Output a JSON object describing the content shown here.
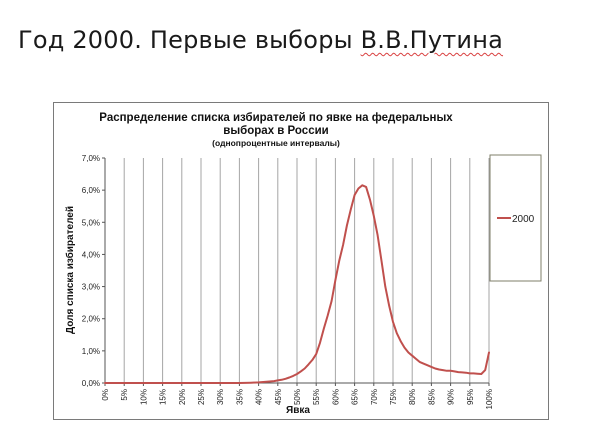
{
  "slide": {
    "title_prefix": "Год 2000. Первые выборы ",
    "title_name": "В.В.Путина"
  },
  "chart_data": {
    "type": "line",
    "title_line1": "Распределение списка избирателей по явке на федеральных",
    "title_line2": "выборах в России",
    "subtitle": "(однопроцентные интервалы)",
    "xlabel": "Явка",
    "ylabel": "Доля списка избирателей",
    "xlim": [
      0,
      100
    ],
    "ylim": [
      0,
      7
    ],
    "x_ticks": [
      "0%",
      "5%",
      "10%",
      "15%",
      "20%",
      "25%",
      "30%",
      "35%",
      "40%",
      "45%",
      "50%",
      "55%",
      "60%",
      "65%",
      "70%",
      "75%",
      "80%",
      "85%",
      "90%",
      "95%",
      "100%"
    ],
    "y_ticks": [
      "0,0%",
      "1,0%",
      "2,0%",
      "3,0%",
      "4,0%",
      "5,0%",
      "6,0%",
      "7,0%"
    ],
    "grid": "vertical",
    "legend_position": "right",
    "series": [
      {
        "name": "2000",
        "color": "#c0504d",
        "x": [
          0,
          5,
          10,
          15,
          20,
          25,
          30,
          35,
          38,
          40,
          42,
          44,
          45,
          46,
          47,
          48,
          49,
          50,
          51,
          52,
          53,
          54,
          55,
          56,
          57,
          58,
          59,
          60,
          61,
          62,
          63,
          64,
          65,
          66,
          67,
          68,
          69,
          70,
          71,
          72,
          73,
          74,
          75,
          76,
          77,
          78,
          79,
          80,
          81,
          82,
          83,
          84,
          85,
          86,
          87,
          88,
          89,
          90,
          91,
          92,
          93,
          94,
          95,
          96,
          97,
          98,
          99,
          100
        ],
        "y": [
          0,
          0,
          0,
          0,
          0,
          0,
          0,
          0,
          0.01,
          0.02,
          0.04,
          0.06,
          0.08,
          0.1,
          0.13,
          0.17,
          0.22,
          0.28,
          0.36,
          0.45,
          0.58,
          0.72,
          0.9,
          1.25,
          1.7,
          2.1,
          2.55,
          3.2,
          3.8,
          4.3,
          4.9,
          5.4,
          5.85,
          6.05,
          6.15,
          6.1,
          5.7,
          5.2,
          4.6,
          3.8,
          3.0,
          2.4,
          1.9,
          1.55,
          1.3,
          1.1,
          0.95,
          0.85,
          0.75,
          0.65,
          0.6,
          0.55,
          0.5,
          0.45,
          0.42,
          0.4,
          0.38,
          0.38,
          0.36,
          0.34,
          0.33,
          0.32,
          0.3,
          0.3,
          0.29,
          0.28,
          0.4,
          0.95
        ]
      }
    ]
  }
}
